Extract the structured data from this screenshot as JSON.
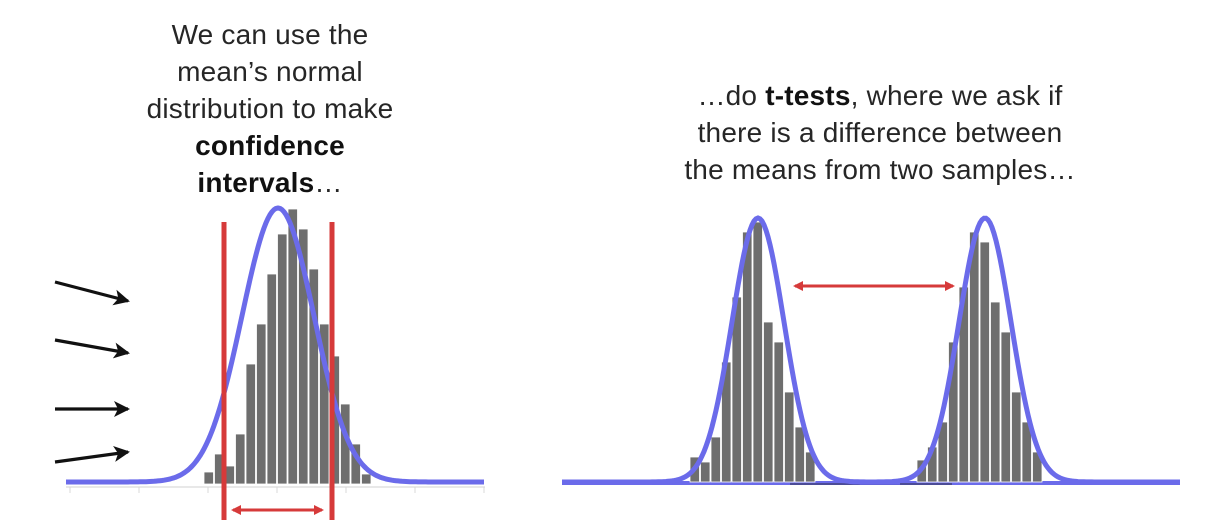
{
  "left_caption": {
    "line1": "We can use the",
    "line2": "mean’s normal",
    "line3": "distribution to make",
    "line4_bold": "confidence",
    "line5_bold": "intervals",
    "line5_tail": "…"
  },
  "right_caption": {
    "line1_pre": "…do ",
    "line1_bold": "t-tests",
    "line1_post": ", where we ask if",
    "line2": "there is a difference between",
    "line3": "the means from two samples…"
  },
  "colors": {
    "curve": "#6b6bea",
    "bars": "#6e6e6e",
    "marker": "#d63a3a",
    "arrows": "#111111",
    "axis": "#cfcfcf"
  }
}
